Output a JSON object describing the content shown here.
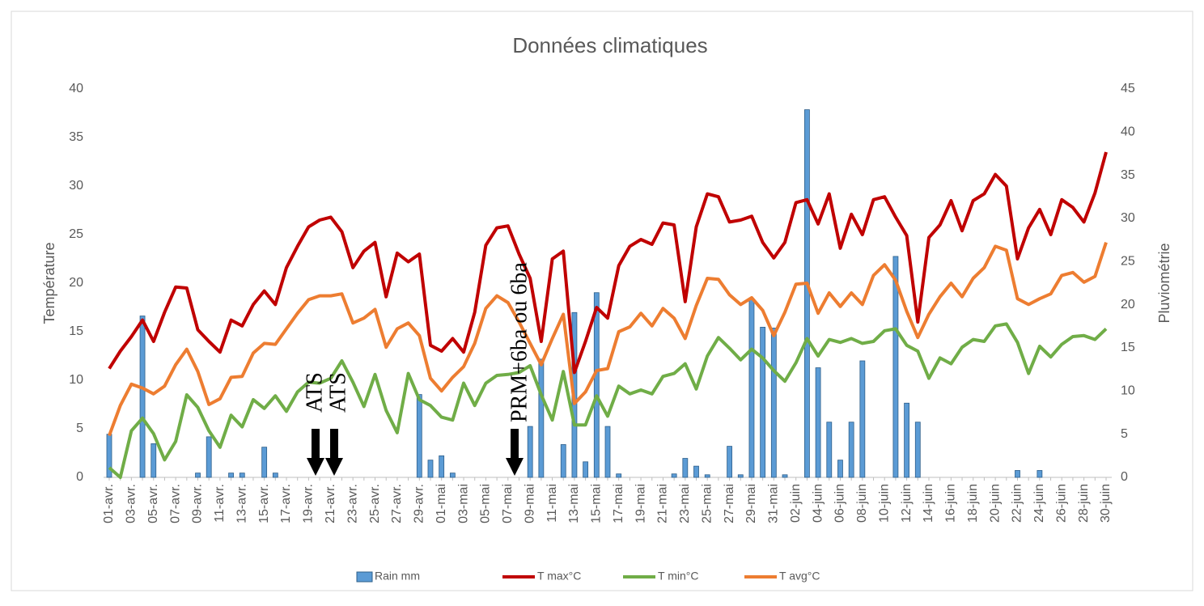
{
  "chart_data": {
    "type": "combo",
    "title": "Données climatiques",
    "ylabel": "Température",
    "y2label": "Pluviométrie",
    "categories": [
      "01-avr.",
      null,
      "03-avr.",
      null,
      "05-avr.",
      null,
      "07-avr.",
      null,
      "09-avr.",
      null,
      "11-avr.",
      null,
      "13-avr.",
      null,
      "15-avr.",
      null,
      "17-avr.",
      null,
      "19-avr.",
      null,
      "21-avr.",
      null,
      "23-avr.",
      null,
      "25-avr.",
      null,
      "27-avr.",
      null,
      "29-avr.",
      null,
      "01-mai",
      null,
      "03-mai",
      null,
      "05-mai",
      null,
      "07-mai",
      null,
      "09-mai",
      null,
      "11-mai",
      null,
      "13-mai",
      null,
      "15-mai",
      null,
      "17-mai",
      null,
      "19-mai",
      null,
      "21-mai",
      null,
      "23-mai",
      null,
      "25-mai",
      null,
      "27-mai",
      null,
      "29-mai",
      null,
      "31-mai",
      null,
      "02-juin",
      null,
      "04-juin",
      null,
      "06-juin",
      null,
      "08-juin",
      null,
      "10-juin",
      null,
      "12-juin",
      null,
      "14-juin",
      null,
      "16-juin",
      null,
      "18-juin",
      null,
      "20-juin",
      null,
      "22-juin",
      null,
      "24-juin",
      null,
      "26-juin",
      null,
      "28-juin",
      null,
      "30-juin"
    ],
    "series": [
      {
        "name": "Rain mm",
        "type": "bar",
        "axis": "y2",
        "color": "#5b9bd5",
        "values": [
          5.0,
          0,
          0,
          18.7,
          3.9,
          0,
          0,
          0,
          0.5,
          4.7,
          0,
          0.5,
          0.5,
          0,
          3.5,
          0.5,
          0,
          0,
          0,
          0,
          0,
          0,
          0,
          0,
          0,
          0,
          0,
          0,
          9.6,
          2.0,
          2.5,
          0.5,
          0,
          0,
          0,
          0,
          0,
          0,
          5.9,
          13.7,
          0,
          3.8,
          19.1,
          1.8,
          21.4,
          5.9,
          0.4,
          0,
          0,
          0,
          0,
          0.4,
          2.2,
          1.3,
          0.3,
          0,
          3.6,
          0.3,
          20.6,
          17.4,
          17.3,
          0.3,
          0,
          42.6,
          12.7,
          6.4,
          2.0,
          6.4,
          13.5,
          0,
          0,
          25.6,
          8.6,
          6.4,
          0,
          0,
          0,
          0,
          0,
          0,
          0,
          0,
          0.8,
          0,
          0.8,
          0,
          0,
          0,
          0,
          0,
          0
        ]
      },
      {
        "name": "T max°C",
        "type": "line",
        "color": "#c00000",
        "values": [
          11.2,
          13,
          14.5,
          16.2,
          14.0,
          17,
          19.6,
          19.5,
          15.2,
          14.0,
          12.9,
          16.2,
          15.6,
          17.8,
          19.2,
          17.8,
          21.6,
          23.8,
          25.8,
          26.5,
          26.8,
          25.3,
          21.6,
          23.3,
          24.2,
          18.6,
          23.1,
          22.2,
          23.0,
          13.6,
          13.0,
          14.3,
          12.9,
          17.0,
          23.9,
          25.7,
          25.9,
          23.0,
          20.5,
          14.0,
          22.5,
          23.3,
          10.8,
          14.0,
          17.5,
          16.4,
          21.8,
          23.8,
          24.5,
          24.0,
          26.2,
          26.0,
          18.1,
          25.8,
          29.2,
          28.9,
          26.3,
          26.5,
          26.9,
          24.2,
          22.6,
          24.2,
          28.3,
          28.6,
          26.1,
          29.2,
          23.6,
          27.1,
          25.0,
          28.6,
          28.9,
          26.8,
          24.9,
          16.0,
          24.7,
          26.0,
          28.5,
          25.4,
          28.5,
          29.2,
          31.2,
          30.0,
          22.5,
          25.7,
          27.6,
          25.0,
          28.6,
          27.8,
          26.3,
          29.3,
          33.5
        ]
      },
      {
        "name": "T min°C",
        "type": "line",
        "color": "#70ad47",
        "values": [
          1.0,
          0,
          4.8,
          6.1,
          4.5,
          1.8,
          3.7,
          8.5,
          7.2,
          4.8,
          3.1,
          6.4,
          5.2,
          8.0,
          7.1,
          8.4,
          6.8,
          8.8,
          9.8,
          9.7,
          10.2,
          12.0,
          9.8,
          7.3,
          10.6,
          6.9,
          4.6,
          10.7,
          8.0,
          7.4,
          6.2,
          5.9,
          9.7,
          7.4,
          9.7,
          10.5,
          10.6,
          10.8,
          11.5,
          8.5,
          5.9,
          10.9,
          5.4,
          5.4,
          8.4,
          6.3,
          9.4,
          8.6,
          9.0,
          8.6,
          10.4,
          10.7,
          11.7,
          9.1,
          12.5,
          14.4,
          13.3,
          12.1,
          13.2,
          12.3,
          11.0,
          9.9,
          11.8,
          14.3,
          12.5,
          14.2,
          13.9,
          14.3,
          13.8,
          14.0,
          15.1,
          15.3,
          13.6,
          13.0,
          10.2,
          12.3,
          11.7,
          13.4,
          14.2,
          14.0,
          15.6,
          15.8,
          13.9,
          10.7,
          13.5,
          12.4,
          13.7,
          14.5,
          14.6,
          14.2,
          15.3
        ]
      },
      {
        "name": "T avg°C",
        "type": "line",
        "color": "#ed7d31",
        "values": [
          4.3,
          7.4,
          9.6,
          9.2,
          8.6,
          9.4,
          11.6,
          13.2,
          10.9,
          7.5,
          8.1,
          10.3,
          10.4,
          12.8,
          13.8,
          13.7,
          15.3,
          16.9,
          18.3,
          18.7,
          18.7,
          18.9,
          15.9,
          16.4,
          17.3,
          13.4,
          15.3,
          15.9,
          14.6,
          10.2,
          8.9,
          10.3,
          11.4,
          13.8,
          17.4,
          18.7,
          18.0,
          16.0,
          13.8,
          11.6,
          14.3,
          16.8,
          7.6,
          8.8,
          11.0,
          11.2,
          15.0,
          15.5,
          16.9,
          15.6,
          17.4,
          16.4,
          14.3,
          17.7,
          20.5,
          20.4,
          18.8,
          17.8,
          18.5,
          17.2,
          14.6,
          17.0,
          19.9,
          20.0,
          16.9,
          19.0,
          17.6,
          19.0,
          17.8,
          20.8,
          21.9,
          20.3,
          17.1,
          14.4,
          16.8,
          18.6,
          20.0,
          18.6,
          20.5,
          21.6,
          23.8,
          23.4,
          18.4,
          17.8,
          18.4,
          18.9,
          20.8,
          21.1,
          20.1,
          20.7,
          24.2
        ]
      }
    ],
    "ylim": [
      0,
      40
    ],
    "yticks": [
      0,
      5,
      10,
      15,
      20,
      25,
      30,
      35,
      40
    ],
    "y2lim": [
      0,
      45
    ],
    "y2ticks": [
      0,
      5,
      10,
      15,
      20,
      25,
      30,
      35,
      40,
      45
    ],
    "grid": false,
    "legend": "bottom",
    "annotations": [
      "ATS",
      "ATS",
      "PRM+6ba ou 6ba"
    ]
  }
}
